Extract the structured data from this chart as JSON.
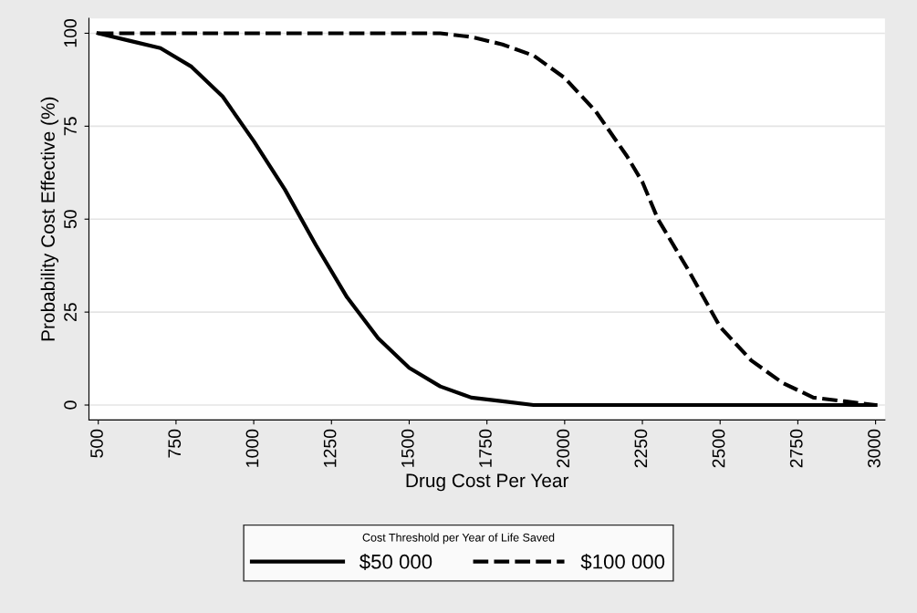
{
  "chart_data": {
    "type": "line",
    "xlabel": "Drug Cost Per Year",
    "ylabel": "Probability Cost Effective (%)",
    "legend_title": "Cost Threshold per Year of Life Saved",
    "xlim": [
      470,
      3030
    ],
    "xticks": [
      500,
      750,
      1000,
      1250,
      1500,
      1750,
      2000,
      2250,
      2500,
      2750,
      3000
    ],
    "ylim": [
      -4,
      104
    ],
    "yticks": [
      0,
      25,
      50,
      75,
      100
    ],
    "grid": "y",
    "legend": "bottom",
    "series": [
      {
        "name": "$50 000",
        "color": "#000000",
        "line_style": "solid",
        "x": [
          500,
          600,
          700,
          800,
          900,
          1000,
          1100,
          1200,
          1300,
          1400,
          1500,
          1600,
          1700,
          1800,
          1900,
          2000,
          2500,
          3000
        ],
        "values": [
          100,
          98,
          96,
          91,
          83,
          71,
          58,
          43,
          29,
          18,
          10,
          5,
          2,
          1,
          0,
          0,
          0,
          0
        ]
      },
      {
        "name": "$100 000",
        "color": "#000000",
        "line_style": "dashed",
        "x": [
          500,
          1000,
          1500,
          1600,
          1700,
          1800,
          1900,
          2000,
          2100,
          2200,
          2250,
          2300,
          2400,
          2500,
          2600,
          2700,
          2800,
          2900,
          3000
        ],
        "values": [
          100,
          100,
          100,
          100,
          99,
          97,
          94,
          88,
          79,
          67,
          60,
          50,
          36,
          21,
          12,
          6,
          2,
          1,
          0
        ]
      }
    ]
  }
}
